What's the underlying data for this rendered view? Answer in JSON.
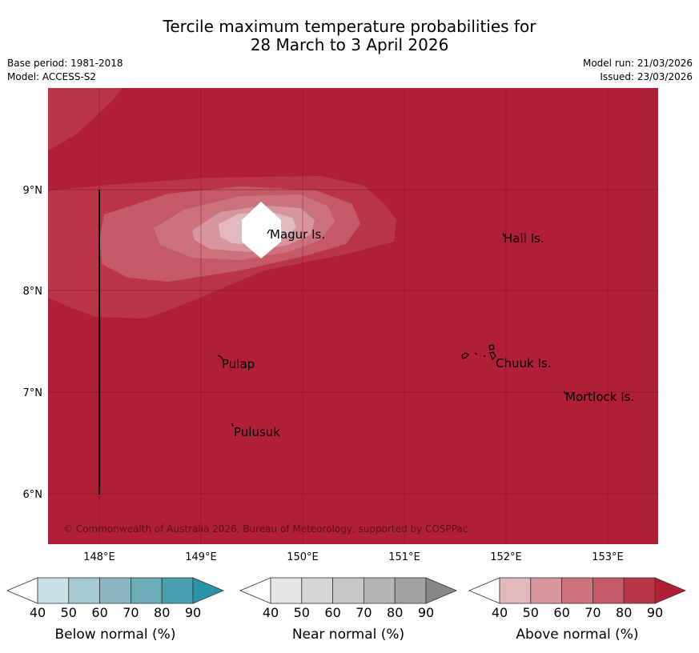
{
  "title_line1": "Tercile maximum temperature probabilities for",
  "title_line2": "28 March to 3 April 2026",
  "base_period": "Base period: 1981-2018",
  "model": "Model: ACCESS-S2",
  "model_run": "Model run: 21/03/2026",
  "issued": "Issued: 23/03/2026",
  "copyright": "© Commonwealth of Australia 2026, Bureau of Meteorology, supported by COSPPac",
  "lat_labels": [
    "9°N",
    "8°N",
    "7°N",
    "6°N"
  ],
  "lon_labels": [
    "148°E",
    "149°E",
    "150°E",
    "151°E",
    "152°E",
    "153°E"
  ],
  "places": [
    "Magur Is.",
    "Hall Is.",
    "Pulap",
    "Chuuk Is.",
    "Mortlock Is.",
    "Pulusuk"
  ],
  "colorbars": [
    {
      "label": "Below normal (%)",
      "ticks": [
        "40",
        "50",
        "60",
        "70",
        "80",
        "90"
      ],
      "colors": [
        "#ffffff",
        "#c9e1e7",
        "#a5c9d0",
        "#8ab7c2",
        "#6cabb8",
        "#47a0b0",
        "#2c93a6"
      ]
    },
    {
      "label": "Near normal (%)",
      "ticks": [
        "40",
        "50",
        "60",
        "70",
        "80",
        "90"
      ],
      "colors": [
        "#ffffff",
        "#e6e6e6",
        "#d6d6d6",
        "#c8c8c8",
        "#b5b5b5",
        "#a2a2a2",
        "#888888"
      ]
    },
    {
      "label": "Above normal (%)",
      "ticks": [
        "40",
        "50",
        "60",
        "70",
        "80",
        "90"
      ],
      "colors": [
        "#ffffff",
        "#e2b9bf",
        "#d7959e",
        "#cb727e",
        "#c45a67",
        "#bb3548",
        "#b01e38"
      ]
    }
  ],
  "map_background_color": "#b01e38",
  "graticule_color": "#7a1024"
}
